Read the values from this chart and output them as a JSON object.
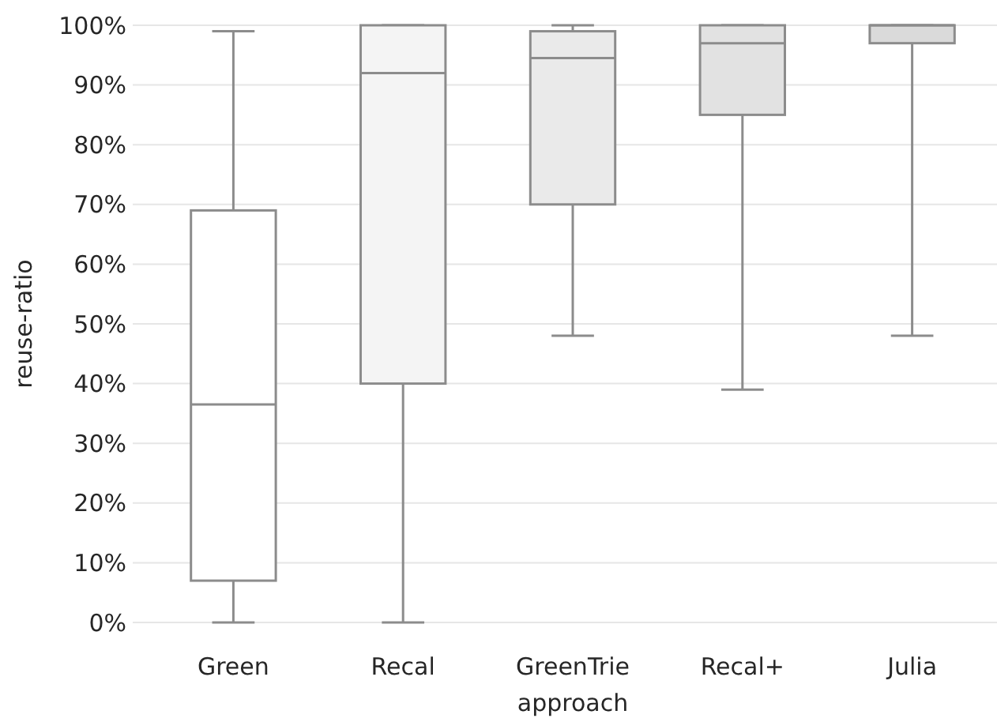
{
  "chart_data": {
    "type": "box",
    "xlabel": "approach",
    "ylabel": "reuse-ratio",
    "categories": [
      "Green",
      "Recal",
      "GreenTrie",
      "Recal+",
      "Julia"
    ],
    "boxes": [
      {
        "low": 0,
        "q1": 7,
        "median": 36.5,
        "q3": 69,
        "high": 99
      },
      {
        "low": 0,
        "q1": 40,
        "median": 92,
        "q3": 100,
        "high": 100
      },
      {
        "low": 48,
        "q1": 70,
        "median": 94.5,
        "q3": 99,
        "high": 100
      },
      {
        "low": 39,
        "q1": 85,
        "median": 97,
        "q3": 100,
        "high": 100
      },
      {
        "low": 48,
        "q1": 97,
        "median": 100,
        "q3": 100,
        "high": 100
      }
    ],
    "colors": [
      "#ffffff",
      "#f4f4f4",
      "#eaeaea",
      "#e2e2e2",
      "#dadada"
    ],
    "ylim": [
      0,
      100
    ],
    "yticks": [
      {
        "value": 0,
        "label": "0%"
      },
      {
        "value": 10,
        "label": "10%"
      },
      {
        "value": 20,
        "label": "20%"
      },
      {
        "value": 30,
        "label": "30%"
      },
      {
        "value": 40,
        "label": "40%"
      },
      {
        "value": 50,
        "label": "50%"
      },
      {
        "value": 60,
        "label": "60%"
      },
      {
        "value": 70,
        "label": "70%"
      },
      {
        "value": 80,
        "label": "80%"
      },
      {
        "value": 90,
        "label": "90%"
      },
      {
        "value": 100,
        "label": "100%"
      }
    ],
    "grid": "y"
  }
}
